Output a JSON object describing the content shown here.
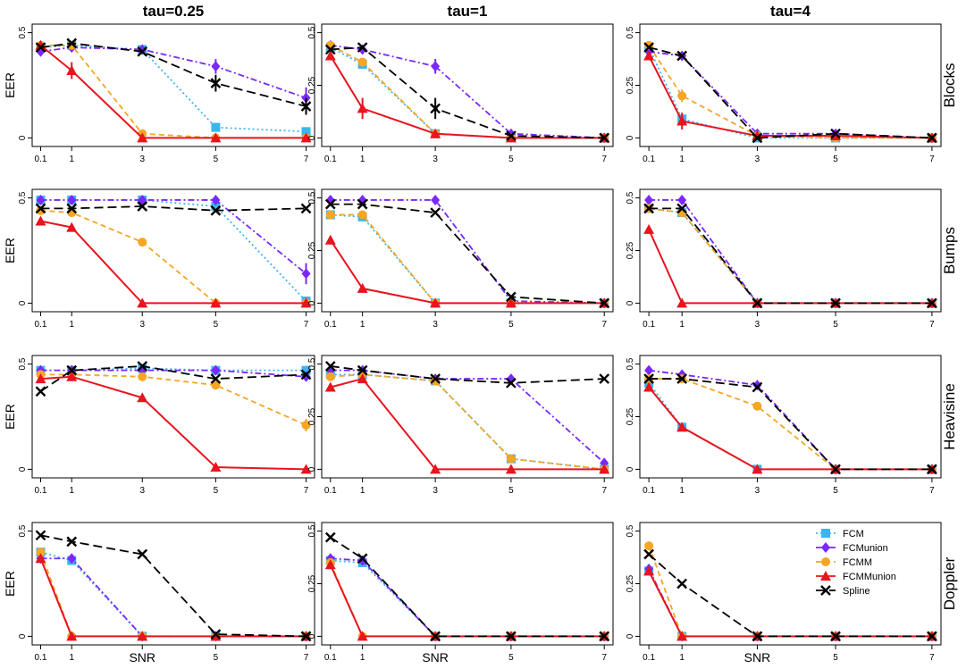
{
  "chart_data": {
    "type": "line",
    "col_titles": [
      "tau=0.25",
      "tau=1",
      "tau=4"
    ],
    "row_labels": [
      "Blocks",
      "Bumps",
      "Heavisine",
      "Doppler"
    ],
    "ylabel": "EER",
    "xlabel": "SNR",
    "x": [
      0.1,
      1,
      3,
      5,
      7
    ],
    "x_tick_labels": [
      "0.1",
      "1",
      "3",
      "5",
      "7"
    ],
    "y_tick_labels": [
      "0",
      "0.25",
      "0.5"
    ],
    "ylim": [
      0,
      0.5
    ],
    "legend": {
      "position": "bottom-right (Doppler, tau=4)",
      "entries": [
        "FCM",
        "FCMunion",
        "FCMM",
        "FCMMunion",
        "Spline"
      ]
    },
    "series_styles": [
      {
        "name": "FCM",
        "color": "#3cb4f0",
        "dash": "dotted",
        "marker": "square"
      },
      {
        "name": "FCMunion",
        "color": "#7a28ff",
        "dash": "dashdot",
        "marker": "diamond"
      },
      {
        "name": "FCMM",
        "color": "#f5a623",
        "dash": "dashed",
        "marker": "circle"
      },
      {
        "name": "FCMMunion",
        "color": "#e8141e",
        "dash": "solid",
        "marker": "triangle"
      },
      {
        "name": "Spline",
        "color": "#000000",
        "dash": "longdash",
        "marker": "x"
      }
    ],
    "panels": [
      {
        "row": "Blocks",
        "col": "tau=0.25",
        "series": {
          "FCM": [
            0.43,
            0.44,
            0.42,
            0.05,
            0.03
          ],
          "FCMunion": [
            0.41,
            0.43,
            0.42,
            0.34,
            0.19
          ],
          "FCMM": [
            0.44,
            0.44,
            0.02,
            0.0,
            0.0
          ],
          "FCMMunion": [
            0.44,
            0.32,
            0.0,
            0.0,
            0.0
          ],
          "Spline": [
            0.43,
            0.45,
            0.41,
            0.26,
            0.15
          ]
        },
        "error": {
          "FCMunion": [
            0,
            0,
            0,
            0.035,
            0.05
          ],
          "FCMMunion": [
            0,
            0.04,
            0,
            0,
            0
          ],
          "Spline": [
            0,
            0,
            0,
            0.04,
            0.04
          ]
        }
      },
      {
        "row": "Blocks",
        "col": "tau=1",
        "series": {
          "FCM": [
            0.43,
            0.35,
            0.02,
            0.0,
            0.0
          ],
          "FCMunion": [
            0.44,
            0.42,
            0.34,
            0.02,
            0.0
          ],
          "FCMM": [
            0.44,
            0.36,
            0.02,
            0.0,
            0.0
          ],
          "FCMMunion": [
            0.39,
            0.14,
            0.02,
            0.0,
            0.0
          ],
          "Spline": [
            0.42,
            0.43,
            0.14,
            0.01,
            0.0
          ]
        },
        "error": {
          "FCMunion": [
            0,
            0,
            0.035,
            0,
            0
          ],
          "FCMMunion": [
            0,
            0.05,
            0,
            0,
            0
          ],
          "Spline": [
            0,
            0,
            0.05,
            0,
            0
          ]
        }
      },
      {
        "row": "Blocks",
        "col": "tau=4",
        "series": {
          "FCM": [
            0.43,
            0.09,
            0.0,
            0.0,
            0.0
          ],
          "FCMunion": [
            0.41,
            0.39,
            0.02,
            0.02,
            0.0
          ],
          "FCMM": [
            0.44,
            0.2,
            0.01,
            0.0,
            0.0
          ],
          "FCMMunion": [
            0.39,
            0.08,
            0.01,
            0.01,
            0.0
          ],
          "Spline": [
            0.43,
            0.39,
            0.0,
            0.02,
            0.0
          ]
        },
        "error": {
          "FCMM": [
            0,
            0.03,
            0,
            0,
            0
          ],
          "FCMMunion": [
            0,
            0.04,
            0,
            0,
            0
          ]
        }
      },
      {
        "row": "Bumps",
        "col": "tau=0.25",
        "series": {
          "FCM": [
            0.49,
            0.49,
            0.49,
            0.46,
            0.01
          ],
          "FCMunion": [
            0.49,
            0.49,
            0.49,
            0.49,
            0.14
          ],
          "FCMM": [
            0.44,
            0.43,
            0.29,
            0.0,
            0.0
          ],
          "FCMMunion": [
            0.39,
            0.36,
            0.0,
            0.0,
            0.0
          ],
          "Spline": [
            0.45,
            0.45,
            0.46,
            0.44,
            0.45
          ]
        },
        "error": {
          "FCMunion": [
            0,
            0,
            0,
            0,
            0.05
          ]
        }
      },
      {
        "row": "Bumps",
        "col": "tau=1",
        "series": {
          "FCM": [
            0.42,
            0.41,
            0.0,
            0.0,
            0.0
          ],
          "FCMunion": [
            0.49,
            0.49,
            0.49,
            0.01,
            0.0
          ],
          "FCMM": [
            0.42,
            0.42,
            0.0,
            0.0,
            0.0
          ],
          "FCMMunion": [
            0.3,
            0.07,
            0.0,
            0.0,
            0.0
          ],
          "Spline": [
            0.47,
            0.47,
            0.43,
            0.03,
            0.0
          ]
        },
        "error": {}
      },
      {
        "row": "Bumps",
        "col": "tau=4",
        "series": {
          "FCM": [
            0.45,
            0.43,
            0.0,
            0.0,
            0.0
          ],
          "FCMunion": [
            0.49,
            0.49,
            0.0,
            0.0,
            0.0
          ],
          "FCMM": [
            0.45,
            0.43,
            0.0,
            0.0,
            0.0
          ],
          "FCMMunion": [
            0.35,
            0.0,
            0.0,
            0.0,
            0.0
          ],
          "Spline": [
            0.45,
            0.45,
            0.0,
            0.0,
            0.0
          ]
        },
        "error": {}
      },
      {
        "row": "Heavisine",
        "col": "tau=0.25",
        "series": {
          "FCM": [
            0.47,
            0.47,
            0.48,
            0.47,
            0.47
          ],
          "FCMunion": [
            0.47,
            0.47,
            0.47,
            0.47,
            0.44
          ],
          "FCMM": [
            0.45,
            0.45,
            0.44,
            0.4,
            0.21
          ],
          "FCMMunion": [
            0.43,
            0.44,
            0.34,
            0.01,
            0.0
          ],
          "Spline": [
            0.37,
            0.47,
            0.49,
            0.43,
            0.45
          ]
        },
        "error": {
          "FCMM": [
            0,
            0,
            0,
            0,
            0.03
          ]
        }
      },
      {
        "row": "Heavisine",
        "col": "tau=1",
        "series": {
          "FCM": [
            0.45,
            0.45,
            0.42,
            0.05,
            0.0
          ],
          "FCMunion": [
            0.47,
            0.47,
            0.43,
            0.43,
            0.03
          ],
          "FCMM": [
            0.44,
            0.45,
            0.42,
            0.05,
            0.0
          ],
          "FCMMunion": [
            0.39,
            0.43,
            0.0,
            0.0,
            0.0
          ],
          "Spline": [
            0.49,
            0.47,
            0.43,
            0.41,
            0.43
          ]
        },
        "error": {
          "FCMunion": [
            0,
            0,
            0,
            0,
            0.02
          ]
        }
      },
      {
        "row": "Heavisine",
        "col": "tau=4",
        "series": {
          "FCM": [
            0.41,
            0.2,
            0.0,
            0.0,
            0.0
          ],
          "FCMunion": [
            0.47,
            0.45,
            0.4,
            0.0,
            0.0
          ],
          "FCMM": [
            0.43,
            0.43,
            0.3,
            0.0,
            0.0
          ],
          "FCMMunion": [
            0.39,
            0.2,
            0.0,
            0.0,
            0.0
          ],
          "Spline": [
            0.43,
            0.43,
            0.39,
            0.0,
            0.0
          ]
        },
        "error": {}
      },
      {
        "row": "Doppler",
        "col": "tau=0.25",
        "series": {
          "FCM": [
            0.4,
            0.36,
            0.0,
            0.0,
            0.0
          ],
          "FCMunion": [
            0.37,
            0.37,
            0.0,
            0.0,
            0.0
          ],
          "FCMM": [
            0.4,
            0.0,
            0.0,
            0.0,
            0.0
          ],
          "FCMMunion": [
            0.37,
            0.0,
            0.0,
            0.0,
            0.0
          ],
          "Spline": [
            0.48,
            0.45,
            0.39,
            0.01,
            0.0
          ]
        },
        "error": {}
      },
      {
        "row": "Doppler",
        "col": "tau=1",
        "series": {
          "FCM": [
            0.36,
            0.35,
            0.0,
            0.0,
            0.0
          ],
          "FCMunion": [
            0.37,
            0.36,
            0.0,
            0.0,
            0.0
          ],
          "FCMM": [
            0.35,
            0.0,
            0.0,
            0.0,
            0.0
          ],
          "FCMMunion": [
            0.34,
            0.0,
            0.0,
            0.0,
            0.0
          ],
          "Spline": [
            0.47,
            0.37,
            0.0,
            0.0,
            0.0
          ]
        },
        "error": {}
      },
      {
        "row": "Doppler",
        "col": "tau=4",
        "series": {
          "FCM": [
            0.31,
            0.0,
            0.0,
            0.0,
            0.0
          ],
          "FCMunion": [
            0.32,
            0.0,
            0.0,
            0.0,
            0.0
          ],
          "FCMM": [
            0.43,
            0.0,
            0.0,
            0.0,
            0.0
          ],
          "FCMMunion": [
            0.31,
            0.0,
            0.0,
            0.0,
            0.0
          ],
          "Spline": [
            0.39,
            0.25,
            0.0,
            0.0,
            0.0
          ]
        },
        "error": {}
      }
    ]
  }
}
